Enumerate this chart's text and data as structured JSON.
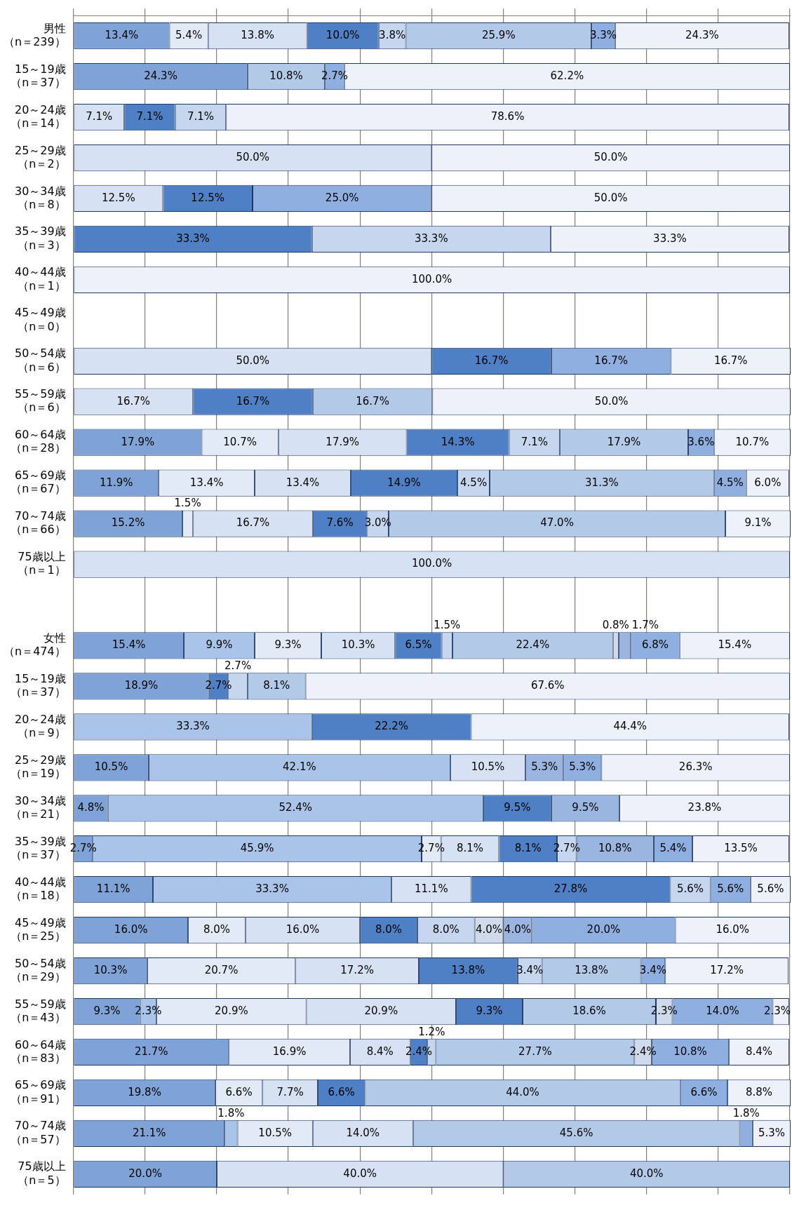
{
  "chart_data": {
    "type": "bar",
    "orientation": "horizontal",
    "stacked": true,
    "relative": false,
    "categories": [
      "男性（n＝239）",
      "15～19歳（n＝37）",
      "20～24歳（n＝14）",
      "25～29歳（n＝2）",
      "30～34歳（n＝8）",
      "35～39歳（n＝3）",
      "40～44歳（n＝1）",
      "45～49歳（n＝0）",
      "50～54歳（n＝6）",
      "55～59歳（n＝6）",
      "60～64歳（n＝28）",
      "65～69歳（n＝67）",
      "70～74歳（n＝66）",
      "75歳以上（n＝1）",
      null,
      "女性（n＝474）",
      "15～19歳（n＝37）",
      "20～24歳（n＝9）",
      "25～29歳（n＝19）",
      "30～34歳（n＝21）",
      "35～39歳（n＝37）",
      "40～44歳（n＝18）",
      "45～49歳（n＝25）",
      "50～54歳（n＝29）",
      "55～59歳（n＝43）",
      "60～64歳（n＝83）",
      "65～69歳（n＝91）",
      "70～74歳（n＝57）",
      "75歳以上（n＝5）"
    ],
    "xlim": [
      0,
      100.1
    ],
    "xticks": [
      {
        "value": 0,
        "label": null
      },
      {
        "value": 10,
        "label": null
      },
      {
        "value": 20,
        "label": null
      },
      {
        "value": 30,
        "label": null
      },
      {
        "value": 40,
        "label": null
      },
      {
        "value": 50,
        "label": null
      },
      {
        "value": 60,
        "label": null
      },
      {
        "value": 70,
        "label": null
      },
      {
        "value": 80,
        "label": null
      },
      {
        "value": 90,
        "label": null
      },
      {
        "value": 100,
        "label": null
      }
    ],
    "tick_labels": "y",
    "grid": "x",
    "legend": false,
    "series": [
      {
        "color": "#7fa3d6",
        "values": [
          13.4,
          24.3,
          null,
          null,
          null,
          null,
          null,
          null,
          null,
          null,
          17.9,
          11.9,
          15.2,
          null,
          null,
          15.4,
          18.9,
          null,
          10.5,
          4.8,
          2.7,
          11.1,
          16.0,
          10.3,
          9.3,
          21.7,
          19.8,
          21.1,
          20.0
        ],
        "value_labels": [
          "13.4%",
          "24.3%",
          null,
          null,
          null,
          null,
          null,
          null,
          null,
          null,
          "17.9%",
          "11.9%",
          "15.2%",
          null,
          null,
          "15.4%",
          "18.9%",
          null,
          "10.5%",
          "4.8%",
          "2.7%",
          "11.1%",
          "16.0%",
          "10.3%",
          "9.3%",
          "21.7%",
          "19.8%",
          "21.1%",
          "20.0%"
        ]
      },
      {
        "color": "#a9c4e8",
        "values": [
          null,
          null,
          null,
          null,
          null,
          null,
          null,
          null,
          null,
          null,
          null,
          null,
          null,
          null,
          null,
          9.9,
          null,
          33.3,
          42.1,
          52.4,
          45.9,
          33.3,
          null,
          null,
          2.3,
          null,
          null,
          1.8,
          null
        ],
        "value_labels": [
          null,
          null,
          null,
          null,
          null,
          null,
          null,
          null,
          null,
          null,
          null,
          null,
          null,
          null,
          null,
          "9.9%",
          null,
          "33.3%",
          "42.1%",
          "52.4%",
          "45.9%",
          "33.3%",
          null,
          null,
          "2.3%",
          null,
          null,
          "1.8%",
          null
        ]
      },
      {
        "color": "#e2eaf6",
        "values": [
          5.4,
          null,
          null,
          null,
          null,
          null,
          null,
          null,
          null,
          null,
          10.7,
          13.4,
          1.5,
          null,
          null,
          9.3,
          null,
          null,
          null,
          null,
          2.7,
          null,
          8.0,
          20.7,
          20.9,
          16.9,
          6.6,
          10.5,
          null
        ],
        "value_labels": [
          "5.4%",
          null,
          null,
          null,
          null,
          null,
          null,
          null,
          null,
          null,
          "10.7%",
          "13.4%",
          "1.5%",
          null,
          null,
          "9.3%",
          null,
          null,
          null,
          null,
          "2.7%",
          null,
          "8.0%",
          "20.7%",
          "20.9%",
          "16.9%",
          "6.6%",
          "10.5%",
          null
        ]
      },
      {
        "color": "#d6e2f3",
        "values": [
          13.8,
          null,
          7.1,
          50.0,
          12.5,
          null,
          null,
          null,
          50.0,
          16.7,
          17.9,
          13.4,
          16.7,
          100.0,
          null,
          10.3,
          null,
          null,
          10.5,
          null,
          8.1,
          11.1,
          16.0,
          17.2,
          20.9,
          8.4,
          7.7,
          14.0,
          40.0
        ],
        "value_labels": [
          "13.8%",
          null,
          "7.1%",
          "50.0%",
          "12.5%",
          null,
          null,
          null,
          "50.0%",
          "16.7%",
          "17.9%",
          "13.4%",
          "16.7%",
          "100.0%",
          null,
          "10.3%",
          null,
          null,
          "10.5%",
          null,
          "8.1%",
          "11.1%",
          "16.0%",
          "17.2%",
          "20.9%",
          "8.4%",
          "7.7%",
          "14.0%",
          "40.0%"
        ]
      },
      {
        "color": "#4f7fc4",
        "values": [
          10.0,
          null,
          7.1,
          null,
          12.5,
          33.3,
          null,
          null,
          16.7,
          16.7,
          14.3,
          14.9,
          7.6,
          null,
          null,
          6.5,
          2.7,
          22.2,
          null,
          9.5,
          8.1,
          27.8,
          8.0,
          13.8,
          9.3,
          2.4,
          6.6,
          null,
          null
        ],
        "value_labels": [
          "10.0%",
          null,
          "7.1%",
          null,
          "12.5%",
          "33.3%",
          null,
          null,
          "16.7%",
          "16.7%",
          "14.3%",
          "14.9%",
          "7.6%",
          null,
          null,
          "6.5%",
          "2.7%",
          "22.2%",
          null,
          "9.5%",
          "8.1%",
          "27.8%",
          "8.0%",
          "13.8%",
          "9.3%",
          "2.4%",
          "6.6%",
          null,
          null
        ]
      },
      {
        "color": "#c5d6ee",
        "values": [
          3.8,
          null,
          7.1,
          null,
          null,
          33.3,
          null,
          null,
          null,
          null,
          7.1,
          4.5,
          3.0,
          null,
          null,
          1.5,
          2.7,
          null,
          null,
          null,
          2.7,
          5.6,
          8.0,
          3.4,
          null,
          1.2,
          null,
          null,
          null
        ],
        "value_labels": [
          "3.8%",
          null,
          "7.1%",
          null,
          null,
          "33.3%",
          null,
          null,
          null,
          null,
          "7.1%",
          "4.5%",
          "3.0%",
          null,
          null,
          "1.5%",
          "2.7%",
          null,
          null,
          null,
          "2.7%",
          "5.6%",
          "8.0%",
          "3.4%",
          null,
          "1.2%",
          null,
          null,
          null
        ]
      },
      {
        "color": "#b3c9e8",
        "values": [
          25.9,
          10.8,
          null,
          null,
          null,
          null,
          null,
          null,
          null,
          16.7,
          17.9,
          31.3,
          47.0,
          null,
          null,
          22.4,
          8.1,
          null,
          null,
          null,
          null,
          null,
          null,
          13.8,
          18.6,
          27.7,
          44.0,
          45.6,
          40.0
        ],
        "value_labels": [
          "25.9%",
          "10.8%",
          null,
          null,
          null,
          null,
          null,
          null,
          null,
          "16.7%",
          "17.9%",
          "31.3%",
          "47.0%",
          null,
          null,
          "22.4%",
          "8.1%",
          null,
          null,
          null,
          null,
          null,
          null,
          "13.8%",
          "18.6%",
          "27.7%",
          "44.0%",
          "45.6%",
          "40.0%"
        ]
      },
      {
        "color": "#cfdbeb",
        "values": [
          null,
          null,
          null,
          null,
          null,
          null,
          null,
          null,
          null,
          null,
          null,
          null,
          null,
          null,
          null,
          0.8,
          null,
          null,
          null,
          null,
          null,
          null,
          4.0,
          null,
          2.3,
          2.4,
          null,
          null,
          null
        ],
        "value_labels": [
          null,
          null,
          null,
          null,
          null,
          null,
          null,
          null,
          null,
          null,
          null,
          null,
          null,
          null,
          null,
          "0.8%",
          null,
          null,
          null,
          null,
          null,
          null,
          "4.0%",
          null,
          "2.3%",
          "2.4%",
          null,
          null,
          null
        ]
      },
      {
        "color": "#9ab5df",
        "values": [
          null,
          null,
          null,
          null,
          null,
          null,
          null,
          null,
          null,
          null,
          null,
          null,
          null,
          null,
          null,
          1.7,
          null,
          null,
          5.3,
          9.5,
          10.8,
          null,
          4.0,
          null,
          null,
          null,
          null,
          null,
          null
        ],
        "value_labels": [
          null,
          null,
          null,
          null,
          null,
          null,
          null,
          null,
          null,
          null,
          null,
          null,
          null,
          null,
          null,
          "1.7%",
          null,
          null,
          "5.3%",
          "9.5%",
          "10.8%",
          null,
          "4.0%",
          null,
          null,
          null,
          null,
          null,
          null
        ]
      },
      {
        "color": "#8eafe0",
        "values": [
          3.3,
          2.7,
          null,
          null,
          25.0,
          null,
          null,
          null,
          16.7,
          null,
          3.6,
          4.5,
          null,
          null,
          null,
          6.8,
          null,
          null,
          5.3,
          null,
          5.4,
          5.6,
          20.0,
          3.4,
          14.0,
          10.8,
          6.6,
          1.8,
          null
        ],
        "value_labels": [
          "3.3%",
          "2.7%",
          null,
          null,
          "25.0%",
          null,
          null,
          null,
          "16.7%",
          null,
          "3.6%",
          "4.5%",
          null,
          null,
          null,
          "6.8%",
          null,
          null,
          "5.3%",
          null,
          "5.4%",
          "5.6%",
          "20.0%",
          "3.4%",
          "14.0%",
          "10.8%",
          "6.6%",
          "1.8%",
          null
        ]
      },
      {
        "color": "#edf2fa",
        "values": [
          24.3,
          62.2,
          78.6,
          50.0,
          50.0,
          33.3,
          100.0,
          null,
          16.7,
          50.0,
          10.7,
          6.0,
          9.1,
          null,
          null,
          15.4,
          67.6,
          44.4,
          26.3,
          23.8,
          13.5,
          5.6,
          16.0,
          17.2,
          2.3,
          8.4,
          8.8,
          5.3,
          null
        ],
        "value_labels": [
          "24.3%",
          "62.2%",
          "78.6%",
          "50.0%",
          "50.0%",
          "33.3%",
          "100.0%",
          null,
          "16.7%",
          "50.0%",
          "10.7%",
          "6.0%",
          "9.1%",
          null,
          null,
          "15.4%",
          "67.6%",
          "44.4%",
          "26.3%",
          "23.8%",
          "13.5%",
          "5.6%",
          "16.0%",
          "17.2%",
          "2.3%",
          "8.4%",
          "8.8%",
          "5.3%",
          null
        ]
      }
    ]
  }
}
